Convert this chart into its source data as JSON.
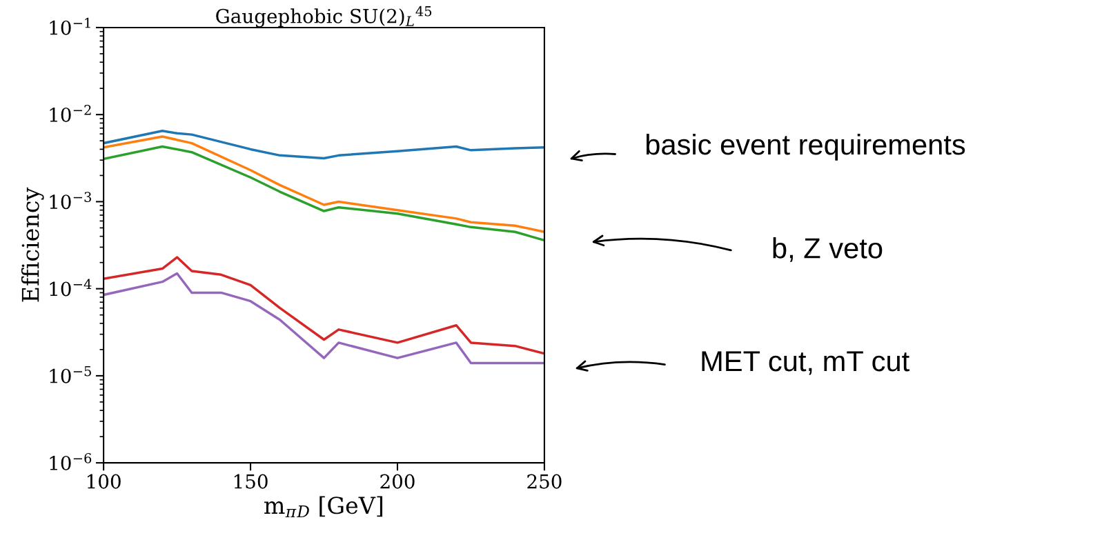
{
  "chart_data": {
    "type": "line",
    "title": "Gaugephobic SU(2)$_{L}$$^{45}$",
    "xlabel": "m$_{π}$$_{D}$ [GeV]",
    "ylabel": "Efficiency",
    "log": "y",
    "xlim": [
      100,
      250
    ],
    "xticks": [
      100,
      150,
      200,
      250
    ],
    "ylim": [
      1e-06,
      0.1
    ],
    "yticks": [
      {
        "value": 1e-06,
        "label": "10$^{−6}$"
      },
      {
        "value": 1e-05,
        "label": "10$^{−5}$"
      },
      {
        "value": 0.0001,
        "label": "10$^{−4}$"
      },
      {
        "value": 0.001,
        "label": "10$^{−3}$"
      },
      {
        "value": 0.01,
        "label": "10$^{−2}$"
      },
      {
        "value": 0.1,
        "label": "10$^{−1}$"
      }
    ],
    "grid": false,
    "legend": false,
    "series": [
      {
        "color": "#1f77b4",
        "x": [
          100,
          120,
          125,
          130,
          150,
          160,
          175,
          180,
          200,
          220,
          225,
          240,
          250
        ],
        "values": [
          0.0047,
          0.0065,
          0.0061,
          0.0059,
          0.004,
          0.0034,
          0.00315,
          0.0034,
          0.0038,
          0.0043,
          0.0039,
          0.0041,
          0.0042
        ]
      },
      {
        "color": "#ff7f0e",
        "x": [
          100,
          120,
          130,
          150,
          160,
          175,
          180,
          200,
          220,
          225,
          240,
          250
        ],
        "values": [
          0.0042,
          0.0056,
          0.0047,
          0.0023,
          0.00155,
          0.00092,
          0.001,
          0.0008,
          0.00064,
          0.00058,
          0.00053,
          0.00045
        ]
      },
      {
        "color": "#2ca02c",
        "x": [
          100,
          120,
          130,
          150,
          160,
          175,
          180,
          200,
          220,
          225,
          240,
          250
        ],
        "values": [
          0.0031,
          0.0043,
          0.0037,
          0.0019,
          0.0013,
          0.00078,
          0.00086,
          0.00073,
          0.00055,
          0.00051,
          0.00045,
          0.00036
        ]
      },
      {
        "color": "#d62728",
        "x": [
          100,
          120,
          125,
          130,
          140,
          150,
          160,
          175,
          180,
          200,
          220,
          225,
          240,
          250
        ],
        "values": [
          0.00013,
          0.00017,
          0.00023,
          0.00016,
          0.000145,
          0.00011,
          6e-05,
          2.6e-05,
          3.4e-05,
          2.4e-05,
          3.8e-05,
          2.4e-05,
          2.2e-05,
          1.8e-05
        ]
      },
      {
        "color": "#9467bd",
        "x": [
          100,
          120,
          125,
          130,
          140,
          150,
          160,
          175,
          180,
          200,
          220,
          225,
          240,
          250
        ],
        "values": [
          8.5e-05,
          0.00012,
          0.00015,
          9e-05,
          9e-05,
          7.2e-05,
          4.4e-05,
          1.6e-05,
          2.4e-05,
          1.6e-05,
          2.4e-05,
          1.4e-05,
          1.4e-05,
          1.4e-05
        ]
      }
    ],
    "annotations": [
      "basic event requirements",
      "b, Z veto",
      "MET cut, mT cut"
    ]
  }
}
